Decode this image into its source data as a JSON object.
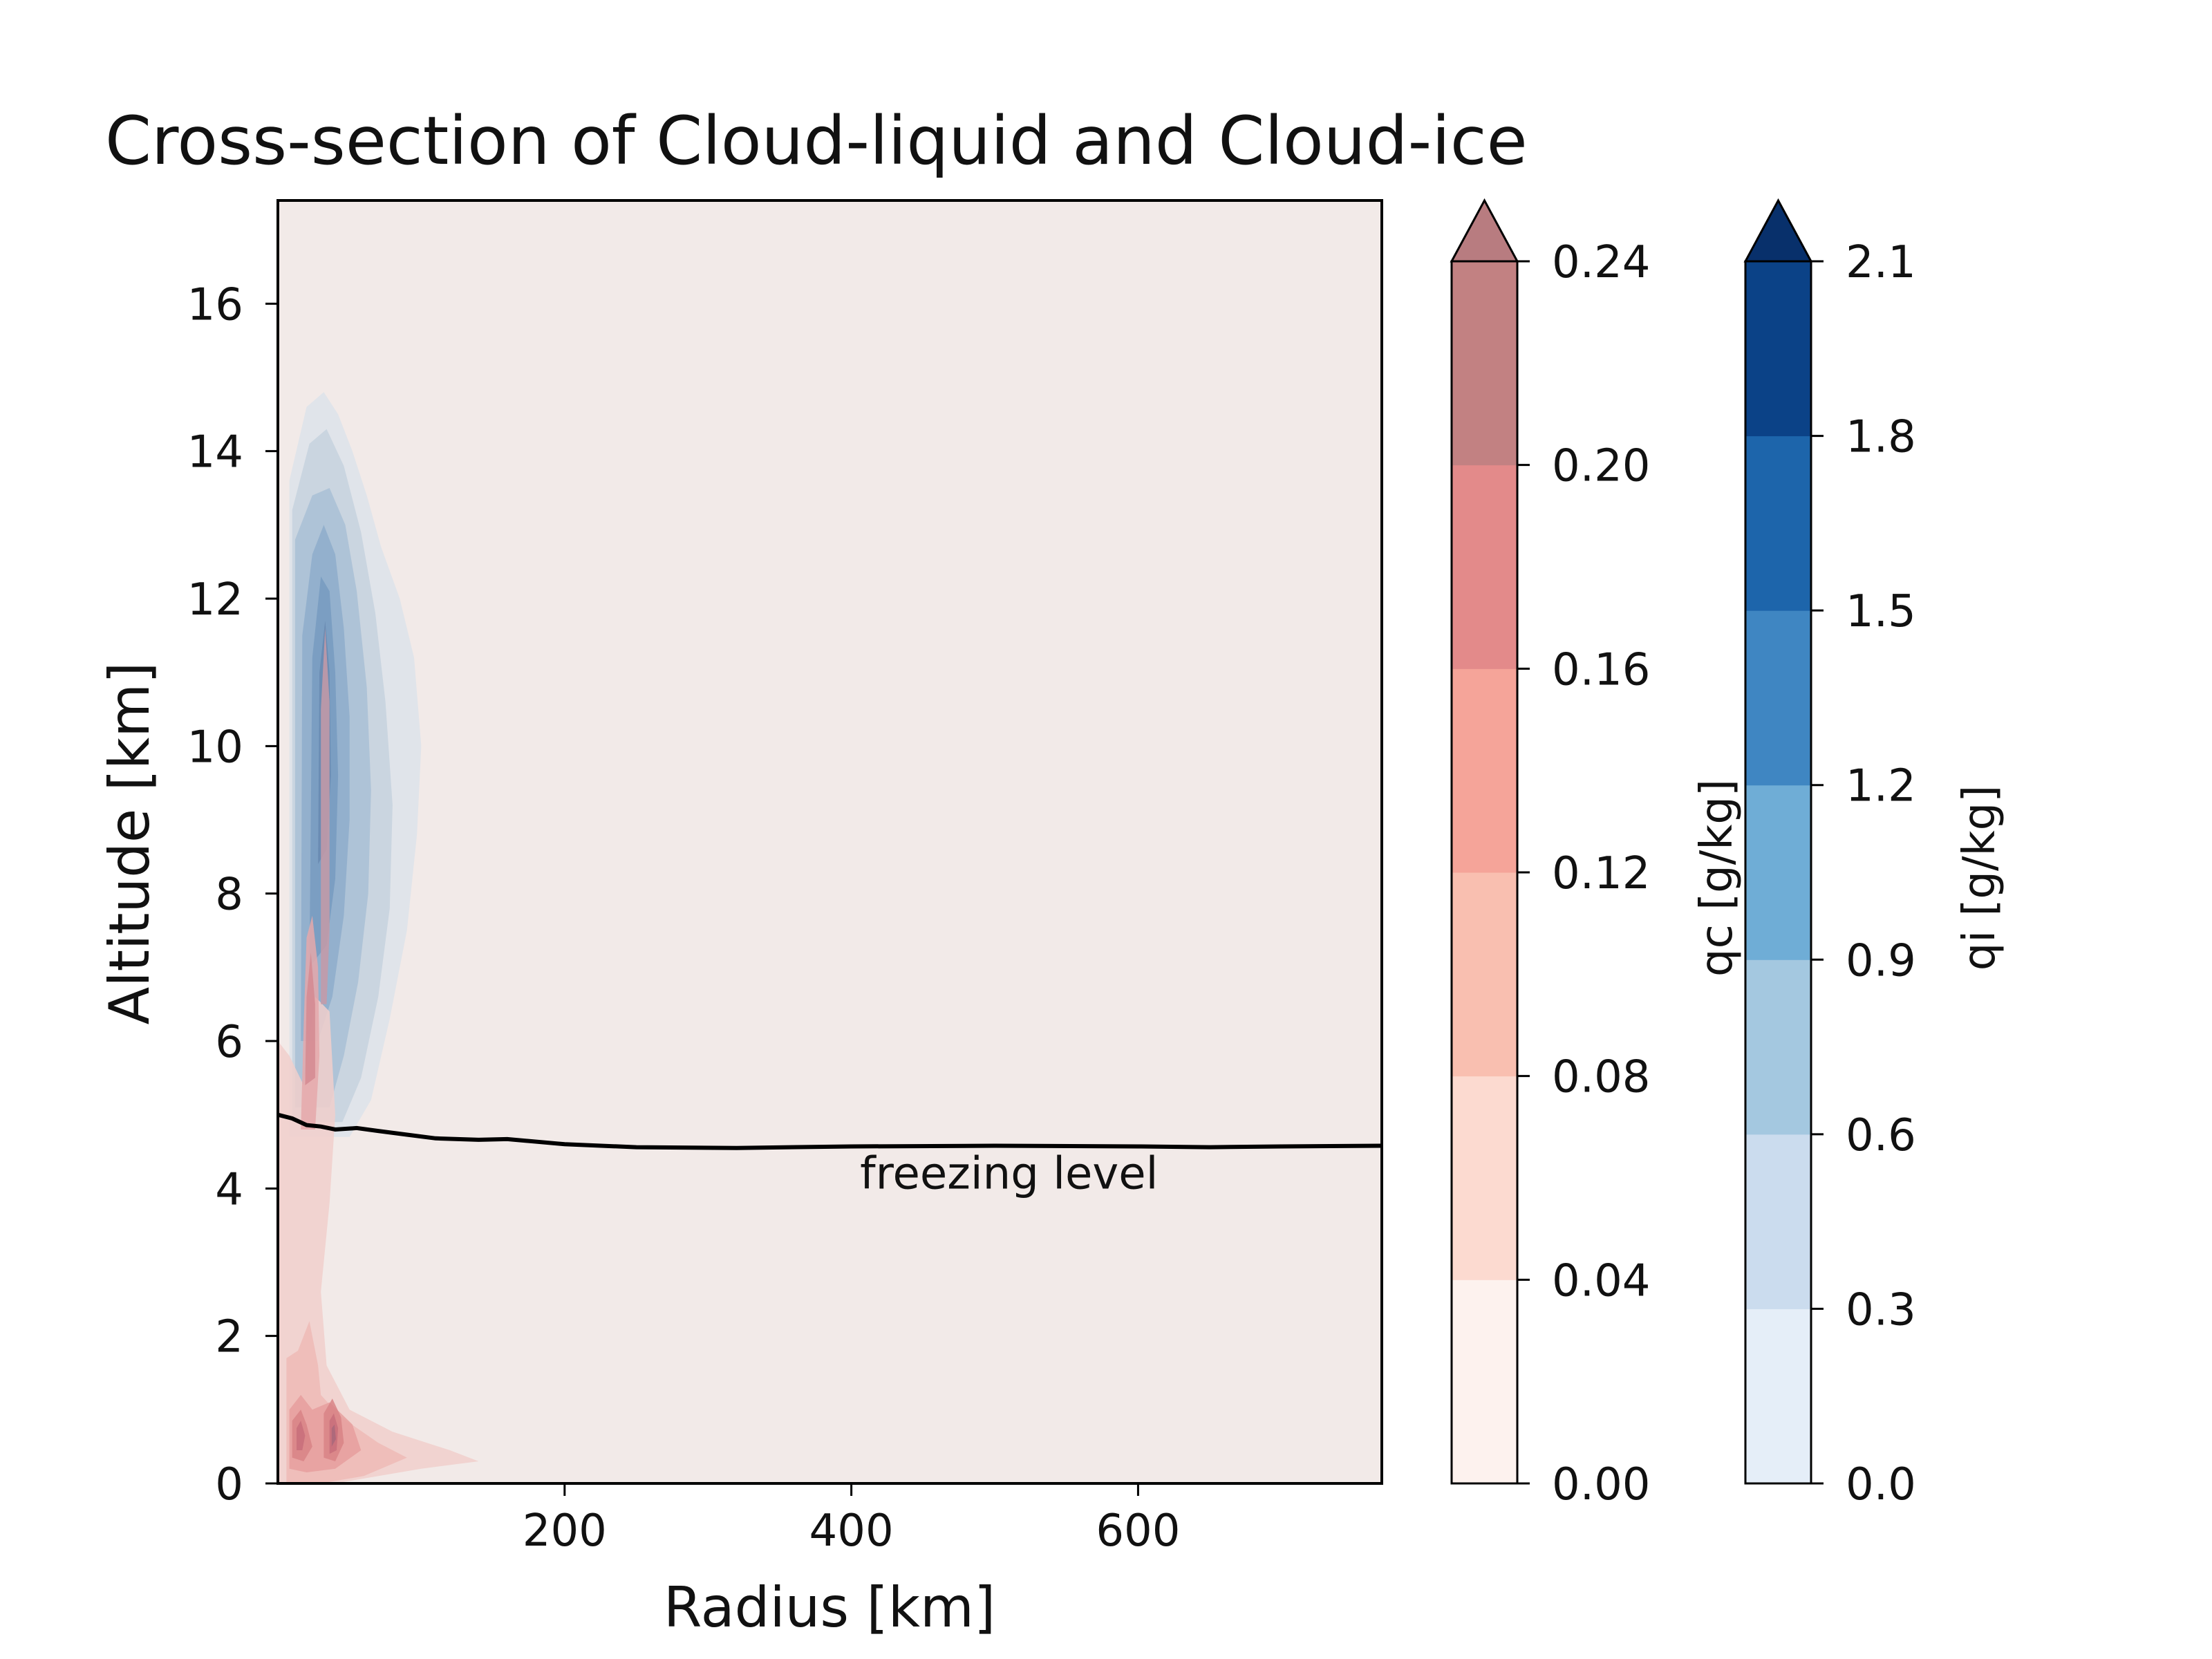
{
  "chart_data": {
    "type": "contour",
    "title": "Cross-section of Cloud-liquid and Cloud-ice",
    "xlabel": "Radius [km]",
    "ylabel": "Altitude [km]",
    "xlim": [
      0,
      770
    ],
    "ylim": [
      0,
      17.4
    ],
    "xticks": [
      200,
      400,
      600
    ],
    "yticks": [
      0,
      2,
      4,
      6,
      8,
      10,
      12,
      14,
      16
    ],
    "grid": false,
    "background_color": "#f2eae8",
    "freezing_level": {
      "label": "freezing level",
      "color": "#000000",
      "points": [
        [
          0,
          5.0
        ],
        [
          10,
          4.95
        ],
        [
          20,
          4.86
        ],
        [
          30,
          4.84
        ],
        [
          40,
          4.8
        ],
        [
          55,
          4.82
        ],
        [
          70,
          4.78
        ],
        [
          90,
          4.73
        ],
        [
          110,
          4.68
        ],
        [
          140,
          4.66
        ],
        [
          160,
          4.67
        ],
        [
          200,
          4.6
        ],
        [
          250,
          4.56
        ],
        [
          320,
          4.55
        ],
        [
          400,
          4.57
        ],
        [
          500,
          4.58
        ],
        [
          600,
          4.57
        ],
        [
          650,
          4.56
        ],
        [
          700,
          4.57
        ],
        [
          770,
          4.58
        ]
      ]
    },
    "colorbars": [
      {
        "name": "qc [g/kg]",
        "levels": [
          0.0,
          0.04,
          0.08,
          0.12,
          0.16,
          0.2,
          0.24
        ],
        "tick_labels": [
          "0.00",
          "0.04",
          "0.08",
          "0.12",
          "0.16",
          "0.20",
          "0.24"
        ],
        "colors": [
          "#fdf2ee",
          "#fcdad0",
          "#f9bfb0",
          "#f5a499",
          "#e38a8a",
          "#c28182"
        ],
        "extend_color": "#b87c80"
      },
      {
        "name": "qi [g/kg]",
        "levels": [
          0.0,
          0.3,
          0.6,
          0.9,
          1.2,
          1.5,
          1.8,
          2.1
        ],
        "tick_labels": [
          "0.0",
          "0.3",
          "0.6",
          "0.9",
          "1.2",
          "1.5",
          "1.8",
          "2.1"
        ],
        "colors": [
          "#e5eef8",
          "#cbdcee",
          "#a4c8e0",
          "#6fadd6",
          "#3f86c2",
          "#1d65ab",
          "#0b4287"
        ],
        "extend_color": "#08306b"
      }
    ],
    "ice_field": [
      {
        "level": 1,
        "color": "#dde3ea",
        "points": [
          [
            8,
            4.7
          ],
          [
            8,
            13.6
          ],
          [
            20,
            14.6
          ],
          [
            32,
            14.8
          ],
          [
            42,
            14.5
          ],
          [
            52,
            14.0
          ],
          [
            62,
            13.4
          ],
          [
            72,
            12.7
          ],
          [
            85,
            12.0
          ],
          [
            95,
            11.2
          ],
          [
            100,
            10.0
          ],
          [
            97,
            8.8
          ],
          [
            90,
            7.5
          ],
          [
            78,
            6.3
          ],
          [
            65,
            5.2
          ],
          [
            50,
            4.7
          ]
        ]
      },
      {
        "level": 2,
        "color": "#c6d2de",
        "points": [
          [
            10,
            4.9
          ],
          [
            10,
            13.2
          ],
          [
            22,
            14.1
          ],
          [
            34,
            14.3
          ],
          [
            46,
            13.8
          ],
          [
            58,
            12.9
          ],
          [
            68,
            11.8
          ],
          [
            75,
            10.6
          ],
          [
            80,
            9.2
          ],
          [
            78,
            7.8
          ],
          [
            70,
            6.6
          ],
          [
            58,
            5.5
          ],
          [
            45,
            4.9
          ]
        ]
      },
      {
        "level": 3,
        "color": "#a9c0d5",
        "points": [
          [
            12,
            5.1
          ],
          [
            12,
            12.8
          ],
          [
            24,
            13.4
          ],
          [
            36,
            13.5
          ],
          [
            47,
            13.0
          ],
          [
            55,
            12.1
          ],
          [
            62,
            10.8
          ],
          [
            65,
            9.4
          ],
          [
            63,
            8.0
          ],
          [
            56,
            6.8
          ],
          [
            46,
            5.8
          ],
          [
            36,
            5.1
          ]
        ]
      },
      {
        "level": 4,
        "color": "#8eadcb",
        "points": [
          [
            16,
            6.0
          ],
          [
            17,
            11.5
          ],
          [
            24,
            12.6
          ],
          [
            32,
            13.0
          ],
          [
            40,
            12.6
          ],
          [
            46,
            11.6
          ],
          [
            50,
            10.4
          ],
          [
            50,
            9.0
          ],
          [
            46,
            7.7
          ],
          [
            38,
            6.6
          ],
          [
            28,
            6.0
          ]
        ]
      },
      {
        "level": 5,
        "color": "#779bbf",
        "points": [
          [
            22,
            7.0
          ],
          [
            24,
            11.2
          ],
          [
            30,
            12.3
          ],
          [
            36,
            12.1
          ],
          [
            40,
            11.0
          ],
          [
            42,
            9.6
          ],
          [
            40,
            8.2
          ],
          [
            34,
            7.3
          ]
        ]
      },
      {
        "level": 6,
        "color": "#6888b0",
        "points": [
          [
            28,
            8.4
          ],
          [
            29,
            11.0
          ],
          [
            33,
            11.7
          ],
          [
            36,
            11.0
          ],
          [
            37,
            9.6
          ],
          [
            34,
            8.6
          ]
        ]
      }
    ],
    "liquid_field": [
      {
        "level": 1,
        "color": "#f1cfcb",
        "points": [
          [
            0,
            0.0
          ],
          [
            0,
            6.0
          ],
          [
            8,
            5.8
          ],
          [
            18,
            5.4
          ],
          [
            26,
            6.6
          ],
          [
            36,
            6.4
          ],
          [
            40,
            5.0
          ],
          [
            36,
            3.8
          ],
          [
            30,
            2.6
          ],
          [
            34,
            1.6
          ],
          [
            50,
            1.0
          ],
          [
            80,
            0.7
          ],
          [
            120,
            0.45
          ],
          [
            140,
            0.3
          ],
          [
            100,
            0.2
          ],
          [
            40,
            0.0
          ]
        ]
      },
      {
        "level": 2,
        "color": "#eebab6",
        "points": [
          [
            6,
            0.0
          ],
          [
            6,
            1.7
          ],
          [
            14,
            1.8
          ],
          [
            22,
            2.2
          ],
          [
            28,
            1.6
          ],
          [
            30,
            1.2
          ],
          [
            44,
            0.9
          ],
          [
            70,
            0.55
          ],
          [
            90,
            0.35
          ],
          [
            60,
            0.1
          ],
          [
            30,
            0.0
          ]
        ]
      },
      {
        "level": 3,
        "color": "#e69f9d",
        "points": [
          [
            8,
            0.2
          ],
          [
            8,
            1.0
          ],
          [
            16,
            1.2
          ],
          [
            24,
            1.0
          ],
          [
            36,
            1.1
          ],
          [
            52,
            0.8
          ],
          [
            58,
            0.45
          ],
          [
            40,
            0.2
          ],
          [
            20,
            0.15
          ]
        ]
      },
      {
        "level": 4,
        "color": "#d88486",
        "points": [
          [
            10,
            0.35
          ],
          [
            10,
            0.85
          ],
          [
            16,
            1.0
          ],
          [
            20,
            0.8
          ],
          [
            24,
            0.5
          ],
          [
            18,
            0.3
          ]
        ]
      },
      {
        "level": 4,
        "color": "#d88486",
        "points": [
          [
            32,
            0.35
          ],
          [
            32,
            0.95
          ],
          [
            38,
            1.15
          ],
          [
            44,
            0.9
          ],
          [
            46,
            0.55
          ],
          [
            40,
            0.3
          ]
        ]
      },
      {
        "level": 5,
        "color": "#c86f7a",
        "points": [
          [
            13,
            0.45
          ],
          [
            13,
            0.75
          ],
          [
            16,
            0.85
          ],
          [
            19,
            0.65
          ],
          [
            17,
            0.45
          ]
        ]
      },
      {
        "level": 5,
        "color": "#c86f7a",
        "points": [
          [
            36,
            0.4
          ],
          [
            36,
            0.85
          ],
          [
            39,
            0.95
          ],
          [
            42,
            0.75
          ],
          [
            41,
            0.45
          ]
        ]
      },
      {
        "level": 6,
        "color": "#a9677a",
        "points": [
          [
            37.5,
            0.5
          ],
          [
            37.5,
            0.75
          ],
          [
            39.5,
            0.8
          ],
          [
            40.5,
            0.6
          ]
        ]
      },
      {
        "level": 2,
        "color": "#e5a8aa",
        "points": [
          [
            16,
            4.8
          ],
          [
            18,
            6.2
          ],
          [
            20,
            7.4
          ],
          [
            24,
            7.7
          ],
          [
            28,
            7.0
          ],
          [
            29,
            5.8
          ],
          [
            26,
            4.8
          ]
        ]
      },
      {
        "level": 3,
        "color": "#d48a92",
        "points": [
          [
            19,
            5.4
          ],
          [
            20,
            6.6
          ],
          [
            23,
            7.2
          ],
          [
            26,
            6.5
          ],
          [
            26,
            5.5
          ]
        ]
      },
      {
        "level": 2,
        "color": "#c69aa7",
        "points": [
          [
            30,
            6.5
          ],
          [
            30,
            10.5
          ],
          [
            33,
            11.6
          ],
          [
            36,
            10.6
          ],
          [
            36,
            7.5
          ],
          [
            34,
            6.5
          ]
        ]
      }
    ]
  }
}
